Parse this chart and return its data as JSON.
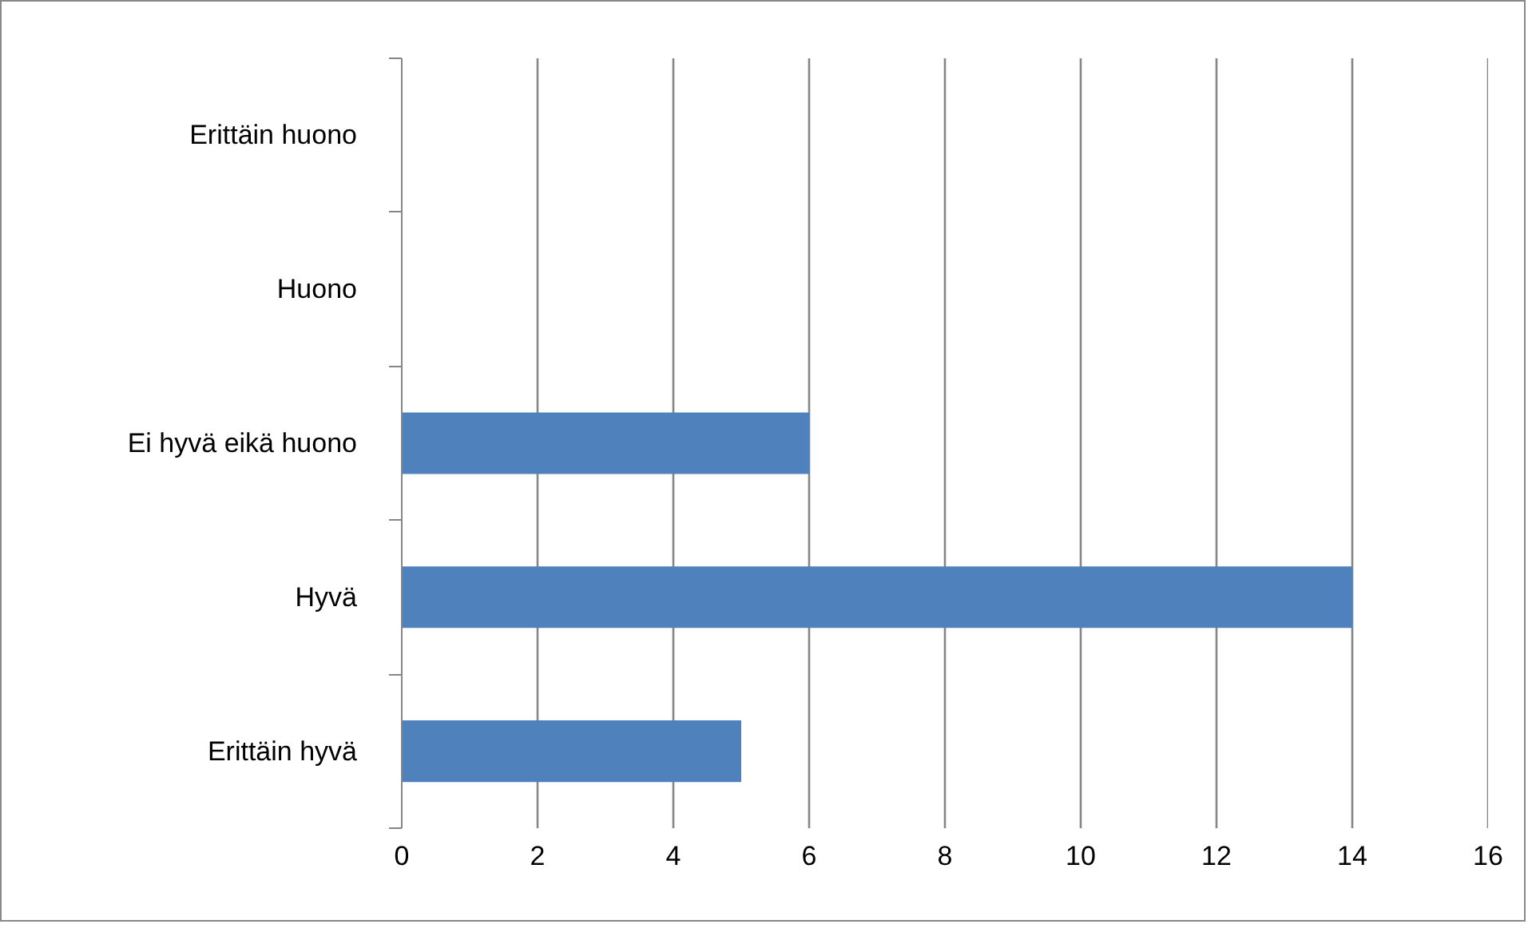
{
  "chart_data": {
    "type": "bar",
    "orientation": "horizontal",
    "categories": [
      "Erittäin huono",
      "Huono",
      "Ei hyvä eikä huono",
      "Hyvä",
      "Erittäin hyvä"
    ],
    "values": [
      0,
      0,
      6,
      14,
      5
    ],
    "color": "#4f81bd",
    "xlim": [
      0,
      16
    ],
    "xticks": [
      0,
      2,
      4,
      6,
      8,
      10,
      12,
      14,
      16
    ],
    "grid": "x"
  }
}
